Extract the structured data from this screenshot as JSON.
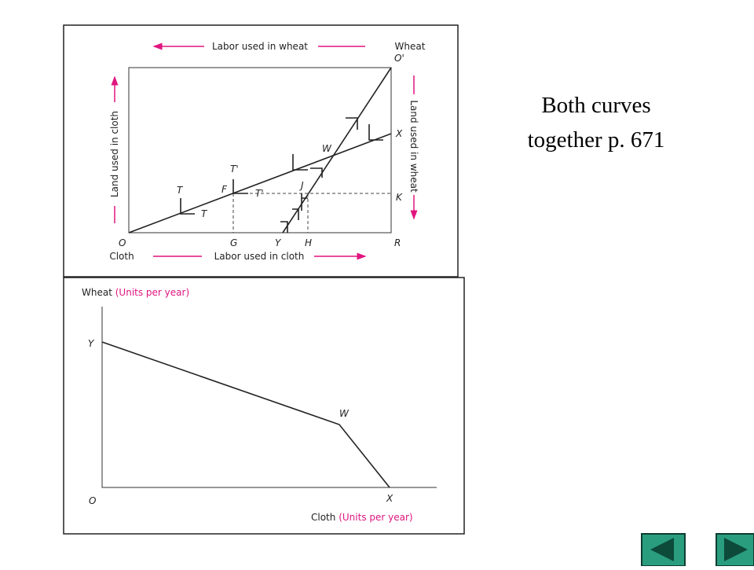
{
  "slide_text": [
    "Both curves",
    "together p. 671"
  ],
  "top_diagram": {
    "labor_in_wheat": "Labor used in wheat",
    "labor_in_cloth": "Labor used in cloth",
    "land_in_cloth": "Land used in cloth",
    "land_in_wheat": "Land used in wheat",
    "wheat": "Wheat",
    "cloth": "Cloth",
    "points": {
      "O_prime": "O'",
      "X": "X",
      "K": "K",
      "R": "R",
      "O": "O",
      "G": "G",
      "Y": "Y",
      "H": "H",
      "F": "F",
      "J": "J",
      "W": "W",
      "T_upper": "T",
      "T_lower": "T",
      "T_prime_upper": "T'",
      "T_prime_right": "T'"
    }
  },
  "bottom_diagram": {
    "y_axis": {
      "name": "Wheat",
      "unit": "(Units per year)"
    },
    "x_axis": {
      "name": "Cloth",
      "unit": "(Units per year)"
    },
    "points": {
      "Y": "Y",
      "W": "W",
      "O": "O",
      "X": "X"
    }
  }
}
